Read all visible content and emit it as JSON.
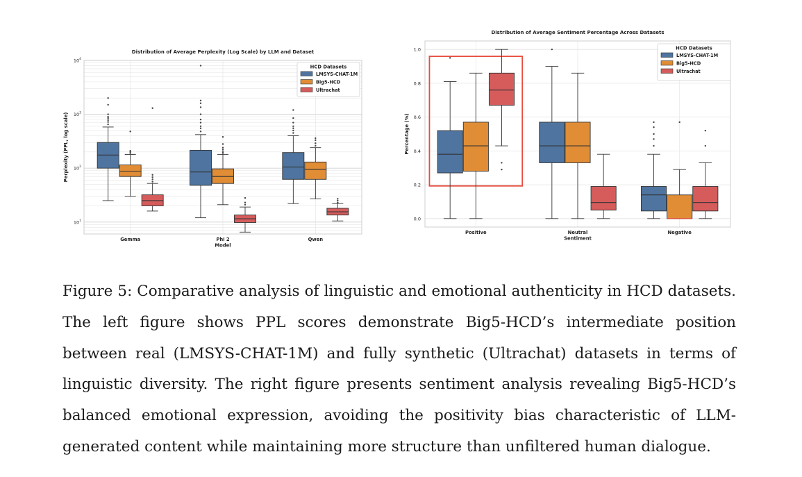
{
  "caption": {
    "text": "Figure 5: Comparative analysis of linguistic and emotional authenticity in HCD datasets. The left figure shows PPL scores demonstrate Big5-HCD’s intermediate position between real (LMSYS-CHAT-1M) and fully synthetic (Ultrachat) datasets in terms of linguistic diversity.  The right figure presents sentiment analysis revealing Big5-HCD’s balanced emotional expression, avoiding the positivity bias characteristic of LLM-generated content while maintaining more structure than unfiltered human dialogue."
  },
  "colors": {
    "LMSYS-CHAT-1M": "#4f74a0",
    "Big5-HCD": "#e08d36",
    "Ultrachat": "#d65c5c",
    "highlight": "#e74c3c"
  },
  "chart_data": [
    {
      "type": "boxplot",
      "title": "Distribution of Average Perplexity (Log Scale) by LLM and Dataset",
      "xlabel": "Model",
      "ylabel": "Perplexity (PPL, log scale)",
      "yscale": "log",
      "ylim": [
        6,
        10000
      ],
      "yticks": [
        {
          "value": 10,
          "base": "10",
          "exp": "1"
        },
        {
          "value": 100,
          "base": "10",
          "exp": "2"
        },
        {
          "value": 1000,
          "base": "10",
          "exp": "3"
        },
        {
          "value": 10000,
          "base": "10",
          "exp": "4"
        }
      ],
      "grid": true,
      "legend": {
        "title": "HCD Datasets",
        "position": "top-right"
      },
      "categories": [
        "Gemma",
        "Phi 2",
        "Qwen"
      ],
      "series": [
        {
          "name": "LMSYS-CHAT-1M",
          "boxes": [
            {
              "whislo": 25,
              "q1": 100,
              "med": 175,
              "q3": 300,
              "whishi": 580,
              "fliers": [
                650,
                720,
                780,
                850,
                900,
                1000,
                1500,
                2000
              ]
            },
            {
              "whislo": 12,
              "q1": 48,
              "med": 85,
              "q3": 215,
              "whishi": 420,
              "fliers": [
                480,
                550,
                600,
                700,
                800,
                1000,
                1350,
                1600,
                1800,
                8000
              ]
            },
            {
              "whislo": 22,
              "q1": 62,
              "med": 105,
              "q3": 195,
              "whishi": 400,
              "fliers": [
                450,
                500,
                550,
                600,
                700,
                850,
                1200
              ]
            }
          ]
        },
        {
          "name": "Big5-HCD",
          "boxes": [
            {
              "whislo": 30,
              "q1": 70,
              "med": 88,
              "q3": 115,
              "whishi": 180,
              "fliers": [
                190,
                200,
                210,
                480
              ]
            },
            {
              "whislo": 21,
              "q1": 52,
              "med": 70,
              "q3": 97,
              "whishi": 180,
              "fliers": [
                190,
                200,
                220,
                240,
                280,
                380
              ]
            },
            {
              "whislo": 27,
              "q1": 62,
              "med": 95,
              "q3": 130,
              "whishi": 240,
              "fliers": [
                260,
                290,
                330,
                360
              ]
            }
          ]
        },
        {
          "name": "Ultrachat",
          "boxes": [
            {
              "whislo": 16,
              "q1": 20,
              "med": 25,
              "q3": 32,
              "whishi": 52,
              "fliers": [
                56,
                62,
                68,
                75,
                1300
              ]
            },
            {
              "whislo": 6.5,
              "q1": 9.8,
              "med": 11.5,
              "q3": 13.5,
              "whishi": 19,
              "fliers": [
                21,
                23,
                28
              ]
            },
            {
              "whislo": 10.5,
              "q1": 13.5,
              "med": 15.5,
              "q3": 18,
              "whishi": 22,
              "fliers": [
                23,
                25,
                27
              ]
            }
          ]
        }
      ]
    },
    {
      "type": "boxplot",
      "title": "Distribution of Average Sentiment Percentage Across Datasets",
      "xlabel": "Sentiment",
      "ylabel": "Percentage (%)",
      "yscale": "linear",
      "ylim": [
        -0.05,
        1.05
      ],
      "yticks": [
        0.0,
        0.2,
        0.4,
        0.6,
        0.8,
        1.0
      ],
      "ytick_labels": [
        "0.0",
        "0.2",
        "0.4",
        "0.6",
        "0.8",
        "1.0"
      ],
      "grid": true,
      "legend": {
        "title": "HCD Datasets",
        "position": "top-right"
      },
      "categories": [
        "Positive",
        "Neutral",
        "Negative"
      ],
      "highlight": {
        "category": "Positive",
        "color": "#e74c3c"
      },
      "series": [
        {
          "name": "LMSYS-CHAT-1M",
          "boxes": [
            {
              "whislo": 0.0,
              "q1": 0.27,
              "med": 0.38,
              "q3": 0.52,
              "whishi": 0.81,
              "fliers": [
                0.95
              ]
            },
            {
              "whislo": 0.0,
              "q1": 0.33,
              "med": 0.43,
              "q3": 0.57,
              "whishi": 0.9,
              "fliers": [
                1.0
              ]
            },
            {
              "whislo": 0.0,
              "q1": 0.045,
              "med": 0.14,
              "q3": 0.19,
              "whishi": 0.38,
              "fliers": [
                0.43,
                0.47,
                0.5,
                0.54,
                0.57
              ]
            }
          ]
        },
        {
          "name": "Big5-HCD",
          "boxes": [
            {
              "whislo": 0.0,
              "q1": 0.28,
              "med": 0.43,
              "q3": 0.57,
              "whishi": 0.86,
              "fliers": []
            },
            {
              "whislo": 0.0,
              "q1": 0.33,
              "med": 0.43,
              "q3": 0.57,
              "whishi": 0.86,
              "fliers": []
            },
            {
              "whislo": 0.0,
              "q1": 0.0,
              "med": 0.0,
              "q3": 0.14,
              "whishi": 0.29,
              "fliers": [
                0.57
              ]
            }
          ]
        },
        {
          "name": "Ultrachat",
          "boxes": [
            {
              "whislo": 0.43,
              "q1": 0.67,
              "med": 0.76,
              "q3": 0.86,
              "whishi": 1.0,
              "fliers": [
                0.29,
                0.33
              ]
            },
            {
              "whislo": 0.0,
              "q1": 0.05,
              "med": 0.095,
              "q3": 0.19,
              "whishi": 0.38,
              "fliers": []
            },
            {
              "whislo": 0.0,
              "q1": 0.045,
              "med": 0.095,
              "q3": 0.19,
              "whishi": 0.33,
              "fliers": [
                0.43,
                0.52
              ]
            }
          ]
        }
      ]
    }
  ]
}
